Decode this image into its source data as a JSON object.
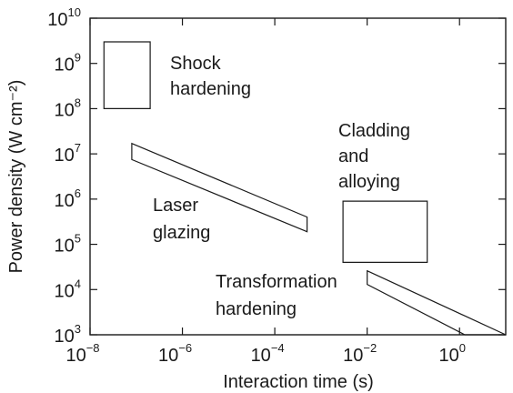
{
  "chart_data": {
    "type": "area",
    "xlabel": "Interaction time (s)",
    "ylabel": "Power density (W cm⁻²)",
    "x_scale": "log",
    "y_scale": "log",
    "xlim": [
      1e-08,
      10
    ],
    "ylim": [
      1000,
      10000000000.0
    ],
    "grid": false,
    "x_ticks": [
      {
        "base": "10",
        "exp": "−8",
        "value": 1e-08
      },
      {
        "base": "10",
        "exp": "−6",
        "value": 1e-06
      },
      {
        "base": "10",
        "exp": "−4",
        "value": 0.0001
      },
      {
        "base": "10",
        "exp": "−2",
        "value": 0.01
      },
      {
        "base": "10",
        "exp": "0",
        "value": 1
      }
    ],
    "y_ticks": [
      {
        "base": "10",
        "exp": "3",
        "value": 1000.0
      },
      {
        "base": "10",
        "exp": "4",
        "value": 10000.0
      },
      {
        "base": "10",
        "exp": "5",
        "value": 100000.0
      },
      {
        "base": "10",
        "exp": "6",
        "value": 1000000.0
      },
      {
        "base": "10",
        "exp": "7",
        "value": 10000000.0
      },
      {
        "base": "10",
        "exp": "8",
        "value": 100000000.0
      },
      {
        "base": "10",
        "exp": "9",
        "value": 1000000000.0
      },
      {
        "base": "10",
        "exp": "10",
        "value": 10000000000.0
      }
    ],
    "regions": [
      {
        "label_lines": [
          "Shock",
          "hardening"
        ],
        "polygon": [
          [
            2e-08,
            3000000000.0
          ],
          [
            2e-07,
            3000000000.0
          ],
          [
            2e-07,
            100000000.0
          ],
          [
            2e-08,
            100000000.0
          ]
        ]
      },
      {
        "label_lines": [
          "Laser",
          "glazing"
        ],
        "polygon": [
          [
            8e-08,
            17000000.0
          ],
          [
            0.0005,
            400000.0
          ],
          [
            0.0005,
            190000.0
          ],
          [
            8e-08,
            7500000.0
          ]
        ]
      },
      {
        "label_lines": [
          "Cladding",
          "and",
          "alloying"
        ],
        "polygon": [
          [
            0.003,
            900000.0
          ],
          [
            0.2,
            900000.0
          ],
          [
            0.2,
            40000.0
          ],
          [
            0.003,
            40000.0
          ]
        ]
      },
      {
        "label_lines": [
          "Transformation",
          "hardening"
        ],
        "polygon": [
          [
            0.01,
            26000.0
          ],
          [
            10,
            1000.0
          ],
          [
            1.3,
            1000.0
          ],
          [
            0.01,
            13000.0
          ]
        ]
      }
    ]
  }
}
